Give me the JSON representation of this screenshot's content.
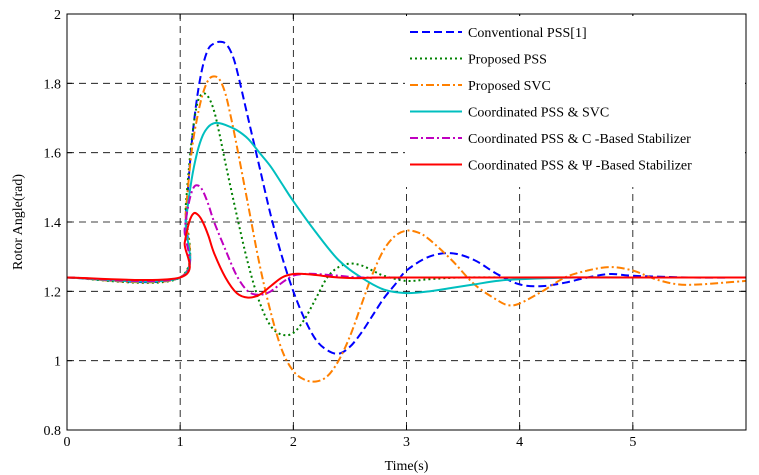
{
  "chart_data": {
    "type": "line",
    "title": "",
    "xlabel": "Time(s)",
    "ylabel": "Rotor Angle(rad)",
    "xlim": [
      0,
      6
    ],
    "ylim": [
      0.8,
      2.0
    ],
    "xticks": [
      0,
      1,
      2,
      3,
      4,
      5
    ],
    "xtick_labels": [
      "0",
      "1",
      "2",
      "3",
      "4",
      "5"
    ],
    "yticks": [
      0.8,
      1.0,
      1.2,
      1.4,
      1.6,
      1.8,
      2.0
    ],
    "ytick_labels": [
      "0.8",
      "1",
      "1.2",
      "1.4",
      "1.6",
      "1.8",
      "2"
    ],
    "grid": true,
    "legend_position": "top-right",
    "series": [
      {
        "name": "Conventional PSS[1]",
        "color": "#0000ff",
        "dash": "dashed",
        "x": [
          0,
          1.0,
          1.05,
          1.1,
          1.15,
          1.2,
          1.25,
          1.3,
          1.35,
          1.4,
          1.45,
          1.5,
          1.6,
          1.7,
          1.8,
          1.9,
          2.0,
          2.1,
          2.2,
          2.3,
          2.4,
          2.5,
          2.6,
          2.7,
          2.8,
          2.9,
          3.0,
          3.2,
          3.4,
          3.6,
          3.8,
          4.0,
          4.2,
          4.4,
          4.6,
          4.8,
          5.0,
          5.5,
          6.0
        ],
        "y": [
          1.24,
          1.24,
          1.42,
          1.62,
          1.76,
          1.85,
          1.9,
          1.915,
          1.92,
          1.915,
          1.89,
          1.84,
          1.7,
          1.56,
          1.42,
          1.3,
          1.2,
          1.12,
          1.06,
          1.03,
          1.02,
          1.04,
          1.08,
          1.13,
          1.18,
          1.22,
          1.26,
          1.3,
          1.31,
          1.29,
          1.25,
          1.22,
          1.215,
          1.225,
          1.24,
          1.25,
          1.245,
          1.24,
          1.24
        ]
      },
      {
        "name": "Proposed PSS",
        "color": "#008000",
        "dash": "dotted",
        "x": [
          0,
          1.0,
          1.05,
          1.1,
          1.15,
          1.2,
          1.25,
          1.3,
          1.35,
          1.4,
          1.5,
          1.6,
          1.7,
          1.8,
          1.9,
          2.0,
          2.1,
          2.2,
          2.3,
          2.4,
          2.5,
          2.6,
          2.7,
          2.8,
          3.0,
          3.2,
          3.5,
          4.0,
          6.0
        ],
        "y": [
          1.24,
          1.24,
          1.45,
          1.63,
          1.74,
          1.77,
          1.76,
          1.72,
          1.65,
          1.57,
          1.42,
          1.28,
          1.17,
          1.1,
          1.075,
          1.08,
          1.12,
          1.18,
          1.24,
          1.27,
          1.28,
          1.275,
          1.26,
          1.245,
          1.23,
          1.235,
          1.24,
          1.24,
          1.24
        ]
      },
      {
        "name": "Proposed SVC",
        "color": "#ff8000",
        "dash": "dashdot",
        "x": [
          0,
          1.0,
          1.05,
          1.1,
          1.15,
          1.2,
          1.25,
          1.3,
          1.35,
          1.4,
          1.45,
          1.5,
          1.6,
          1.7,
          1.8,
          1.9,
          2.0,
          2.1,
          2.2,
          2.3,
          2.4,
          2.5,
          2.6,
          2.7,
          2.8,
          2.9,
          3.0,
          3.1,
          3.2,
          3.4,
          3.6,
          3.8,
          3.9,
          4.0,
          4.2,
          4.4,
          4.6,
          4.8,
          5.0,
          5.2,
          5.4,
          5.6,
          5.8,
          6.0
        ],
        "y": [
          1.24,
          1.24,
          1.43,
          1.6,
          1.7,
          1.77,
          1.81,
          1.82,
          1.81,
          1.77,
          1.7,
          1.62,
          1.45,
          1.28,
          1.14,
          1.03,
          0.97,
          0.945,
          0.94,
          0.955,
          1.0,
          1.07,
          1.16,
          1.25,
          1.32,
          1.36,
          1.375,
          1.37,
          1.35,
          1.29,
          1.22,
          1.175,
          1.16,
          1.165,
          1.2,
          1.24,
          1.26,
          1.27,
          1.26,
          1.235,
          1.22,
          1.22,
          1.225,
          1.23
        ]
      },
      {
        "name": "Coordinated PSS & SVC",
        "color": "#00bfbf",
        "dash": "solid",
        "x": [
          0,
          1.0,
          1.05,
          1.1,
          1.15,
          1.2,
          1.25,
          1.3,
          1.35,
          1.4,
          1.5,
          1.6,
          1.7,
          1.8,
          1.9,
          2.0,
          2.2,
          2.4,
          2.6,
          2.8,
          3.0,
          3.2,
          3.4,
          3.6,
          3.8,
          4.0,
          4.5,
          5.0,
          6.0
        ],
        "y": [
          1.24,
          1.24,
          1.4,
          1.52,
          1.6,
          1.65,
          1.675,
          1.685,
          1.685,
          1.68,
          1.665,
          1.64,
          1.6,
          1.56,
          1.51,
          1.46,
          1.37,
          1.29,
          1.24,
          1.205,
          1.195,
          1.2,
          1.21,
          1.22,
          1.23,
          1.235,
          1.24,
          1.24,
          1.24
        ]
      },
      {
        "name": "Coordinated PSS & C -Based Stabilizer",
        "color": "#bf00bf",
        "dash": "dashdot",
        "x": [
          0,
          1.0,
          1.04,
          1.08,
          1.12,
          1.16,
          1.2,
          1.25,
          1.3,
          1.4,
          1.5,
          1.6,
          1.7,
          1.8,
          1.9,
          2.0,
          2.1,
          2.2,
          2.4,
          2.6,
          3.0,
          6.0
        ],
        "y": [
          1.24,
          1.24,
          1.38,
          1.46,
          1.5,
          1.505,
          1.49,
          1.45,
          1.4,
          1.32,
          1.245,
          1.2,
          1.19,
          1.2,
          1.225,
          1.245,
          1.25,
          1.25,
          1.245,
          1.24,
          1.24,
          1.24
        ]
      },
      {
        "name": "Coordinated PSS & Ψ -Based Stabilizer",
        "color": "#ff0000",
        "dash": "solid",
        "x": [
          0,
          1.0,
          1.04,
          1.08,
          1.12,
          1.16,
          1.2,
          1.25,
          1.3,
          1.4,
          1.5,
          1.6,
          1.7,
          1.8,
          1.9,
          2.0,
          2.1,
          2.2,
          2.4,
          2.6,
          3.0,
          6.0
        ],
        "y": [
          1.24,
          1.24,
          1.34,
          1.4,
          1.425,
          1.42,
          1.4,
          1.36,
          1.31,
          1.24,
          1.195,
          1.182,
          1.19,
          1.215,
          1.24,
          1.25,
          1.25,
          1.247,
          1.24,
          1.238,
          1.24,
          1.24
        ]
      }
    ]
  }
}
